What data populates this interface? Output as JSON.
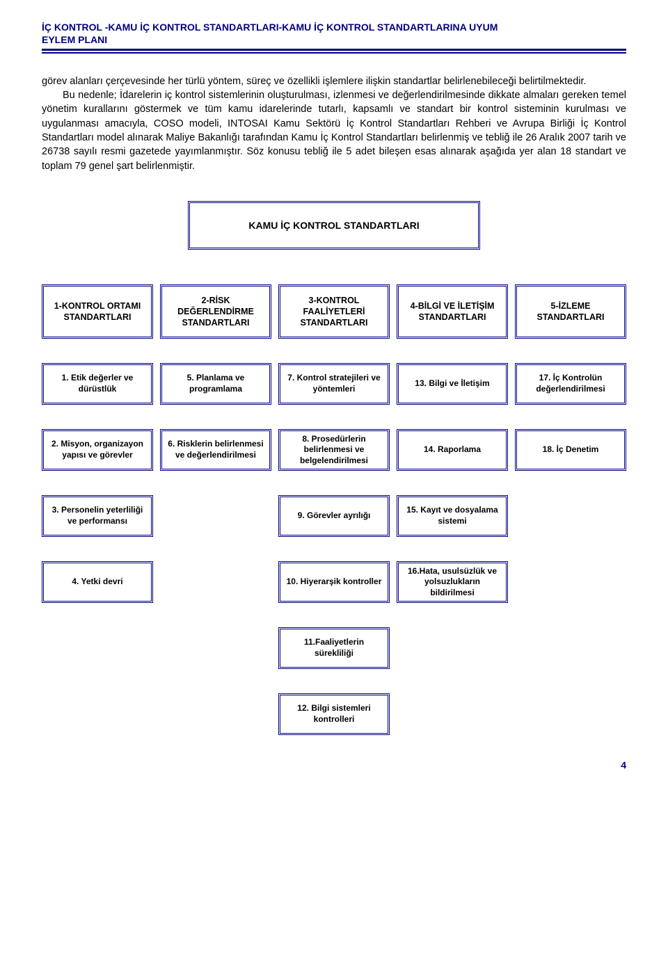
{
  "header": {
    "line1": "İÇ KONTROL -KAMU İÇ KONTROL STANDARTLARI-KAMU İÇ KONTROL STANDARTLARINA UYUM",
    "line2": "EYLEM PLANI"
  },
  "paragraphs": {
    "p1": "görev alanları çerçevesinde her türlü yöntem, süreç ve özellikli işlemlere ilişkin standartlar belirlenebileceği belirtilmektedir.",
    "p2": "Bu nedenle; İdarelerin iç kontrol sistemlerinin oluşturulması, izlenmesi ve değerlendirilmesinde dikkate almaları gereken temel yönetim kurallarını göstermek ve tüm kamu idarelerinde tutarlı, kapsamlı ve standart bir kontrol sisteminin kurulması ve uygulanması amacıyla, COSO modeli, INTOSAI Kamu Sektörü İç Kontrol Standartları Rehberi ve Avrupa Birliği İç Kontrol Standartları model alınarak Maliye Bakanlığı tarafından Kamu İç Kontrol Standartları belirlenmiş ve tebliğ ile 26 Aralık 2007 tarih ve 26738 sayılı resmi gazetede yayımlanmıştır. Söz konusu tebliğ ile 5 adet bileşen esas alınarak aşağıda yer alan 18 standart  ve toplam 79 genel şart belirlenmiştir."
  },
  "title_box": "KAMU İÇ KONTROL STANDARTLARI",
  "categories": [
    "1-KONTROL ORTAMI STANDARTLARI",
    "2-RİSK DEĞERLENDİRME STANDARTLARI",
    "3-KONTROL FAALİYETLERİ STANDARTLARI",
    "4-BİLGİ VE İLETİŞİM STANDARTLARI",
    "5-İZLEME STANDARTLARI"
  ],
  "rows": [
    [
      "1. Etik değerler ve dürüstlük",
      "5. Planlama ve programlama",
      "7. Kontrol stratejileri ve yöntemleri",
      "13. Bilgi ve İletişim",
      "17. İç Kontrolün değerlendirilmesi"
    ],
    [
      "2. Misyon, organizayon yapısı ve görevler",
      "6. Risklerin belirlenmesi ve değerlendirilmesi",
      "8. Prosedürlerin belirlenmesi ve belgelendirilmesi",
      "14. Raporlama",
      "18. İç Denetim"
    ],
    [
      "3. Personelin yeterliliği ve performansı",
      "",
      "9. Görevler ayrılığı",
      "15. Kayıt ve dosyalama sistemi",
      ""
    ],
    [
      "4. Yetki devri",
      "",
      "10. Hiyerarşik kontroller",
      "16.Hata, usulsüzlük ve yolsuzlukların bildirilmesi",
      ""
    ],
    [
      "",
      "",
      "11.Faaliyetlerin sürekliliği",
      "",
      ""
    ],
    [
      "",
      "",
      "12. Bilgi sistemleri kontrolleri",
      "",
      ""
    ]
  ],
  "page_number": "4",
  "colors": {
    "accent": "#000080",
    "text": "#000000",
    "background": "#ffffff"
  }
}
